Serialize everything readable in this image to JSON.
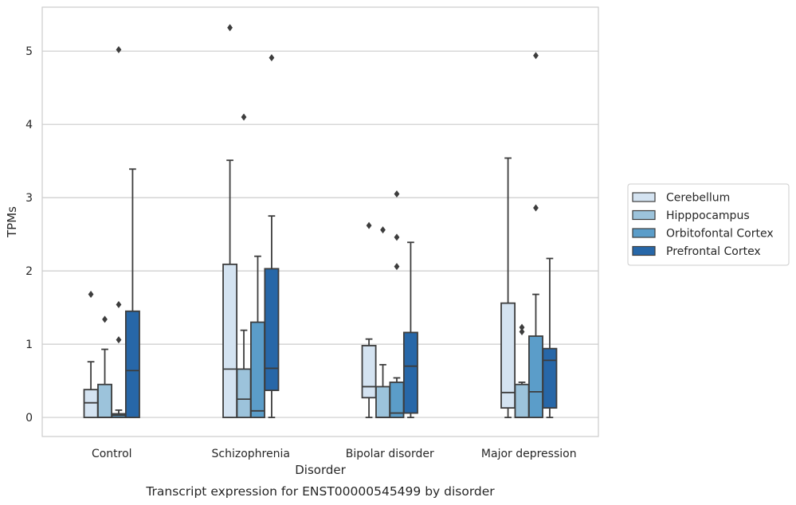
{
  "chart_data": {
    "type": "boxplot",
    "xlabel": "Disorder",
    "ylabel": "TPMs",
    "caption": "Transcript expression for ENST00000545499 by disorder",
    "ylim": [
      -0.26,
      5.6
    ],
    "yticks": [
      "0",
      "1",
      "2",
      "3",
      "4",
      "5"
    ],
    "grid": "horizontal",
    "legend_position": "right",
    "categories": [
      "Control",
      "Schizophrenia",
      "Bipolar disorder",
      "Major depression"
    ],
    "series": [
      {
        "name": "Cerebellum",
        "color": "#d4e3f1",
        "boxes": [
          {
            "whislo": 0,
            "q1": 0,
            "med": 0.2,
            "q3": 0.38,
            "whishi": 0.76,
            "fliers": [
              1.68
            ]
          },
          {
            "whislo": 0,
            "q1": 0,
            "med": 0.66,
            "q3": 2.09,
            "whishi": 3.51,
            "fliers": [
              5.32
            ]
          },
          {
            "whislo": 0,
            "q1": 0.27,
            "med": 0.42,
            "q3": 0.98,
            "whishi": 1.07,
            "fliers": [
              2.62
            ]
          },
          {
            "whislo": 0,
            "q1": 0.13,
            "med": 0.34,
            "q3": 1.56,
            "whishi": 3.54,
            "fliers": []
          }
        ]
      },
      {
        "name": "Hipppocampus",
        "color": "#9cc3db",
        "boxes": [
          {
            "whislo": 0,
            "q1": 0,
            "med": 0,
            "q3": 0.45,
            "whishi": 0.93,
            "fliers": [
              1.34
            ]
          },
          {
            "whislo": 0,
            "q1": 0,
            "med": 0.25,
            "q3": 0.66,
            "whishi": 1.19,
            "fliers": [
              4.1
            ]
          },
          {
            "whislo": 0,
            "q1": 0,
            "med": 0,
            "q3": 0.42,
            "whishi": 0.72,
            "fliers": [
              2.56
            ]
          },
          {
            "whislo": 0,
            "q1": 0,
            "med": 0,
            "q3": 0.45,
            "whishi": 0.48,
            "fliers": [
              1.17,
              1.23
            ]
          }
        ]
      },
      {
        "name": "Orbitofontal Cortex",
        "color": "#5b9dc9",
        "boxes": [
          {
            "whislo": 0,
            "q1": 0,
            "med": 0.03,
            "q3": 0.05,
            "whishi": 0.1,
            "fliers": [
              1.06,
              1.54,
              5.02
            ]
          },
          {
            "whislo": 0,
            "q1": 0,
            "med": 0.09,
            "q3": 1.3,
            "whishi": 2.2,
            "fliers": []
          },
          {
            "whislo": 0,
            "q1": 0,
            "med": 0.06,
            "q3": 0.48,
            "whishi": 0.54,
            "fliers": [
              2.06,
              2.46,
              3.05
            ]
          },
          {
            "whislo": 0,
            "q1": 0,
            "med": 0.35,
            "q3": 1.11,
            "whishi": 1.68,
            "fliers": [
              2.86,
              4.94
            ]
          }
        ]
      },
      {
        "name": "Prefrontal Cortex",
        "color": "#2767a8",
        "boxes": [
          {
            "whislo": 0,
            "q1": 0,
            "med": 0.64,
            "q3": 1.45,
            "whishi": 3.39,
            "fliers": []
          },
          {
            "whislo": 0,
            "q1": 0.37,
            "med": 0.67,
            "q3": 2.03,
            "whishi": 2.75,
            "fliers": [
              4.91
            ]
          },
          {
            "whislo": 0,
            "q1": 0.06,
            "med": 0.7,
            "q3": 1.16,
            "whishi": 2.39,
            "fliers": []
          },
          {
            "whislo": 0,
            "q1": 0.13,
            "med": 0.78,
            "q3": 0.94,
            "whishi": 2.17,
            "fliers": []
          }
        ]
      }
    ]
  },
  "colors": {
    "frame": "#cccccc",
    "grid": "#cccccc",
    "line": "#3d3d3d",
    "text": "#262626"
  }
}
